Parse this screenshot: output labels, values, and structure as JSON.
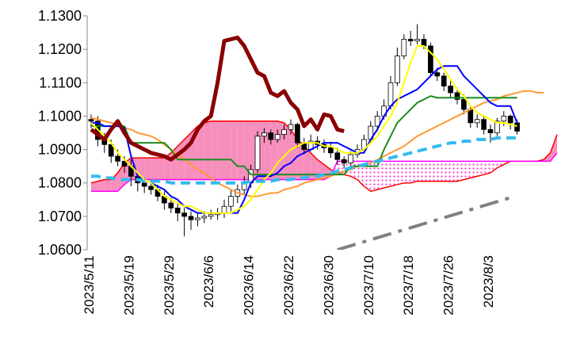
{
  "chart_data": {
    "type": "ichimoku",
    "categories": [
      "2023/5/11",
      null,
      null,
      null,
      null,
      null,
      "2023/5/19",
      null,
      null,
      null,
      null,
      null,
      "2023/5/29",
      null,
      null,
      null,
      null,
      null,
      "2023/6/6",
      null,
      null,
      null,
      null,
      null,
      "2023/6/14",
      null,
      null,
      null,
      null,
      null,
      "2023/6/22",
      null,
      null,
      null,
      null,
      null,
      "2023/6/30",
      null,
      null,
      null,
      null,
      null,
      "2023/7/10",
      null,
      null,
      null,
      null,
      null,
      "2023/7/18",
      null,
      null,
      null,
      null,
      null,
      "2023/7/26",
      null,
      null,
      null,
      null,
      null,
      "2023/8/3",
      null,
      null,
      null,
      null,
      null,
      null,
      null,
      null,
      null,
      null
    ],
    "ylim": [
      1.06,
      1.13
    ],
    "yticks": [
      {
        "value": 1.06,
        "label": "1.0600"
      },
      {
        "value": 1.07,
        "label": "1.0700"
      },
      {
        "value": 1.08,
        "label": "1.0800"
      },
      {
        "value": 1.09,
        "label": "1.0900"
      },
      {
        "value": 1.1,
        "label": "1.1000"
      },
      {
        "value": 1.11,
        "label": "1.1100"
      },
      {
        "value": 1.12,
        "label": "1.1200"
      },
      {
        "value": 1.13,
        "label": "1.1300"
      }
    ],
    "cloud": {
      "span_a": {
        "color": "#ff0000",
        "values": [
          1.08,
          1.0805,
          1.081,
          1.081,
          1.083,
          1.086,
          1.0875,
          1.0875,
          1.0875,
          1.0875,
          1.0875,
          1.0875,
          1.089,
          1.091,
          1.093,
          1.095,
          1.097,
          1.098,
          1.0985,
          1.0985,
          1.0985,
          1.0985,
          1.0985,
          1.0985,
          1.0985,
          1.0985,
          1.0985,
          1.0985,
          1.0985,
          1.098,
          1.096,
          1.093,
          1.091,
          1.089,
          1.087,
          1.0855,
          1.084,
          1.083,
          1.0825,
          1.082,
          1.081,
          1.079,
          1.0775,
          1.078,
          1.0785,
          1.079,
          1.0795,
          1.08,
          1.08,
          1.0805,
          1.0805,
          1.0805,
          1.0805,
          1.0805,
          1.0805,
          1.0805,
          1.081,
          1.0815,
          1.082,
          1.0825,
          1.083,
          1.0845,
          1.0855,
          1.0865,
          1.0865,
          1.0865,
          1.0865,
          1.0865,
          1.087,
          1.089,
          1.0945
        ]
      },
      "span_b": {
        "color": "#ff00ff",
        "values": [
          1.0775,
          1.0775,
          1.0775,
          1.0775,
          1.0775,
          1.0795,
          1.081,
          1.081,
          1.081,
          1.081,
          1.081,
          1.081,
          1.081,
          1.081,
          1.081,
          1.081,
          1.081,
          1.081,
          1.081,
          1.081,
          1.081,
          1.081,
          1.081,
          1.081,
          1.081,
          1.081,
          1.081,
          1.081,
          1.081,
          1.081,
          1.081,
          1.081,
          1.081,
          1.081,
          1.081,
          1.081,
          1.082,
          1.0865,
          1.0865,
          1.0865,
          1.0865,
          1.0865,
          1.0865,
          1.0865,
          1.0865,
          1.0865,
          1.0865,
          1.0865,
          1.0865,
          1.0865,
          1.0865,
          1.0865,
          1.0865,
          1.0865,
          1.0865,
          1.0865,
          1.0865,
          1.0865,
          1.0865,
          1.0865,
          1.0865,
          1.0865,
          1.0865,
          1.0865,
          1.0865,
          1.0865,
          1.0865,
          1.0865,
          1.0865,
          1.0865,
          1.089
        ]
      },
      "bull_color": "#f78fbd",
      "bear_color": "#ff33cc"
    },
    "candles": {
      "up_color": "#ffffff",
      "down_color": "#000000",
      "open": [
        1.099,
        1.0985,
        1.093,
        1.0915,
        1.088,
        1.0865,
        1.085,
        1.082,
        1.08,
        1.079,
        1.078,
        1.076,
        1.074,
        1.0725,
        1.071,
        1.07,
        1.069,
        1.0695,
        1.07,
        1.0705,
        1.071,
        1.073,
        1.076,
        1.078,
        1.08,
        1.084,
        1.094,
        1.095,
        1.093,
        1.0945,
        1.096,
        1.0975,
        1.092,
        1.09,
        1.0925,
        1.0915,
        1.0905,
        1.089,
        1.087,
        1.086,
        1.0885,
        1.09,
        1.093,
        1.097,
        1.1,
        1.103,
        1.11,
        1.118,
        1.123,
        1.1225,
        1.123,
        1.121,
        1.113,
        1.112,
        1.109,
        1.107,
        1.105,
        1.102,
        1.098,
        1.099,
        1.096,
        1.095,
        1.0985,
        1.1,
        1.098
      ],
      "high": [
        1.1005,
        1.1,
        1.095,
        1.093,
        1.09,
        1.088,
        1.087,
        1.083,
        1.0815,
        1.081,
        1.0795,
        1.0775,
        1.0755,
        1.074,
        1.0725,
        1.0715,
        1.071,
        1.0715,
        1.072,
        1.0725,
        1.075,
        1.078,
        1.0795,
        1.082,
        1.0855,
        1.0955,
        1.0965,
        1.096,
        1.096,
        1.0975,
        1.099,
        1.098,
        1.0935,
        1.0945,
        1.094,
        1.093,
        1.092,
        1.0905,
        1.088,
        1.0895,
        1.0915,
        1.0945,
        1.0985,
        1.1015,
        1.105,
        1.112,
        1.1205,
        1.1245,
        1.1255,
        1.1275,
        1.1245,
        1.122,
        1.1145,
        1.113,
        1.1105,
        1.1085,
        1.1065,
        1.103,
        1.1005,
        1.1,
        1.0975,
        1.0995,
        1.1015,
        1.1005,
        1.099
      ],
      "low": [
        1.0965,
        1.091,
        1.089,
        1.086,
        1.085,
        1.083,
        1.079,
        1.0775,
        1.077,
        1.0765,
        1.0745,
        1.072,
        1.071,
        1.0685,
        1.064,
        1.066,
        1.067,
        1.068,
        1.069,
        1.069,
        1.0695,
        1.0715,
        1.074,
        1.0765,
        1.0785,
        1.083,
        1.092,
        1.0915,
        1.092,
        1.093,
        1.0945,
        1.0905,
        1.0885,
        1.0895,
        1.09,
        1.089,
        1.0875,
        1.0855,
        1.0845,
        1.0855,
        1.0875,
        1.0895,
        1.092,
        1.0955,
        1.099,
        1.102,
        1.109,
        1.117,
        1.121,
        1.1215,
        1.12,
        1.112,
        1.1105,
        1.1075,
        1.1055,
        1.1035,
        1.1005,
        1.0965,
        1.0965,
        1.0945,
        1.092,
        1.094,
        1.097,
        1.096,
        1.0945
      ],
      "close": [
        1.0985,
        1.093,
        1.0915,
        1.088,
        1.0865,
        1.085,
        1.082,
        1.08,
        1.079,
        1.078,
        1.076,
        1.074,
        1.0725,
        1.071,
        1.07,
        1.069,
        1.0695,
        1.07,
        1.0705,
        1.071,
        1.073,
        1.076,
        1.078,
        1.08,
        1.084,
        1.094,
        1.095,
        1.093,
        1.0945,
        1.096,
        1.0975,
        1.092,
        1.09,
        1.0925,
        1.0915,
        1.0905,
        1.089,
        1.087,
        1.086,
        1.0885,
        1.09,
        1.093,
        1.097,
        1.1,
        1.103,
        1.11,
        1.118,
        1.123,
        1.1225,
        1.123,
        1.121,
        1.113,
        1.112,
        1.109,
        1.107,
        1.105,
        1.102,
        1.098,
        1.099,
        1.096,
        1.095,
        1.0985,
        1.1,
        1.098,
        1.0955
      ]
    },
    "series": [
      {
        "color": "#ff9933",
        "style": "solid",
        "values": [
          1.0995,
          1.099,
          1.0985,
          1.098,
          1.0975,
          1.0965,
          1.096,
          1.095,
          1.0945,
          1.094,
          1.093,
          1.0915,
          1.09,
          1.0885,
          1.087,
          1.0855,
          1.084,
          1.083,
          1.0815,
          1.08,
          1.079,
          1.078,
          1.077,
          1.0765,
          1.076,
          1.076,
          1.0765,
          1.077,
          1.077,
          1.078,
          1.0785,
          1.079,
          1.08,
          1.0805,
          1.081,
          1.0815,
          1.082,
          1.083,
          1.0835,
          1.084,
          1.085,
          1.0855,
          1.086,
          1.087,
          1.088,
          1.089,
          1.09,
          1.091,
          1.0925,
          1.094,
          1.095,
          1.096,
          1.097,
          1.098,
          1.099,
          1.1,
          1.101,
          1.102,
          1.103,
          1.104,
          1.1045,
          1.105,
          1.106,
          1.1065,
          1.107,
          1.1075,
          1.1075,
          1.107,
          1.107,
          null,
          null
        ]
      },
      {
        "color": "#1e8c1e",
        "style": "solid",
        "values": [
          1.097,
          1.097,
          1.097,
          1.097,
          1.097,
          1.097,
          1.092,
          1.092,
          1.092,
          1.092,
          1.092,
          1.092,
          1.09,
          1.087,
          1.087,
          1.087,
          1.087,
          1.087,
          1.087,
          1.087,
          1.087,
          1.087,
          1.085,
          1.085,
          1.0825,
          1.0825,
          1.0825,
          1.0825,
          1.0825,
          1.0825,
          1.0825,
          1.0825,
          1.0825,
          1.0825,
          1.0825,
          1.0825,
          1.0825,
          1.0825,
          1.0825,
          1.085,
          1.085,
          1.085,
          1.085,
          1.085,
          1.09,
          1.094,
          1.098,
          1.1,
          1.102,
          1.104,
          1.105,
          1.106,
          1.1055,
          1.1055,
          1.1055,
          1.1055,
          1.1055,
          1.1055,
          1.1055,
          1.1055,
          1.1055,
          1.1055,
          1.1055,
          1.1055,
          1.1055,
          null,
          null,
          null,
          null,
          null,
          null
        ]
      },
      {
        "color": "#0000ff",
        "style": "solid",
        "values": [
          1.098,
          1.098,
          1.097,
          1.097,
          1.097,
          1.0965,
          1.088,
          1.082,
          1.081,
          1.08,
          1.079,
          1.078,
          1.076,
          1.075,
          1.073,
          1.072,
          1.071,
          1.071,
          1.071,
          1.071,
          1.071,
          1.071,
          1.071,
          1.075,
          1.08,
          1.082,
          1.082,
          1.082,
          1.083,
          1.085,
          1.086,
          1.088,
          1.089,
          1.09,
          1.091,
          1.092,
          1.092,
          1.092,
          1.091,
          1.09,
          1.089,
          1.089,
          1.093,
          1.096,
          1.1,
          1.103,
          1.105,
          1.106,
          1.107,
          1.108,
          1.11,
          1.112,
          1.114,
          1.115,
          1.115,
          1.115,
          1.112,
          1.11,
          1.108,
          1.106,
          1.104,
          1.103,
          1.103,
          1.103,
          1.098,
          null,
          null,
          null,
          null,
          null,
          null
        ]
      },
      {
        "color": "#ffff00",
        "style": "solid",
        "values": [
          1.098,
          1.096,
          1.094,
          1.092,
          1.089,
          1.087,
          1.085,
          1.083,
          1.081,
          1.08,
          1.078,
          1.076,
          1.075,
          1.074,
          1.073,
          1.073,
          1.072,
          1.071,
          1.071,
          1.071,
          1.071,
          1.071,
          1.072,
          1.073,
          1.075,
          1.078,
          1.081,
          1.083,
          1.086,
          1.088,
          1.09,
          1.091,
          1.092,
          1.092,
          1.092,
          1.091,
          1.091,
          1.09,
          1.089,
          1.089,
          1.089,
          1.09,
          1.092,
          1.094,
          1.097,
          1.1,
          1.104,
          1.11,
          1.116,
          1.121,
          1.121,
          1.119,
          1.117,
          1.114,
          1.111,
          1.108,
          1.106,
          1.103,
          1.101,
          1.1,
          1.099,
          1.098,
          1.098,
          1.0975,
          1.097,
          null,
          null,
          null,
          null,
          null,
          null
        ]
      },
      {
        "color": "#8b0000",
        "style": "thick",
        "values": [
          1.096,
          1.0945,
          1.093,
          1.096,
          1.0985,
          1.095,
          1.092,
          1.091,
          1.09,
          1.089,
          1.0885,
          1.088,
          1.087,
          1.0885,
          1.09,
          1.092,
          1.096,
          1.0985,
          1.1,
          1.11,
          1.1225,
          1.123,
          1.1235,
          1.121,
          1.117,
          1.113,
          1.112,
          1.107,
          1.106,
          1.1075,
          1.104,
          1.102,
          1.097,
          1.099,
          1.096,
          1.1005,
          1.1,
          1.096,
          1.0955,
          null,
          null,
          null,
          null,
          null,
          null,
          null,
          null,
          null,
          null,
          null,
          null,
          null,
          null,
          null,
          null,
          null,
          null,
          null,
          null,
          null,
          null,
          null,
          null,
          null,
          null,
          null,
          null,
          null,
          null,
          null,
          null
        ]
      },
      {
        "color": "#33bbee",
        "style": "dashed",
        "values": [
          1.082,
          1.082,
          1.0815,
          1.0815,
          1.081,
          1.081,
          1.081,
          1.081,
          1.0805,
          1.0805,
          1.0805,
          1.0805,
          1.08,
          1.08,
          1.08,
          1.08,
          1.08,
          1.08,
          1.08,
          1.08,
          1.08,
          1.08,
          1.08,
          1.08,
          1.0805,
          1.0805,
          1.0805,
          1.0805,
          1.081,
          1.081,
          1.081,
          1.0815,
          1.0815,
          1.082,
          1.082,
          1.0825,
          1.083,
          1.0835,
          1.084,
          1.0845,
          1.085,
          1.0855,
          1.086,
          1.0865,
          1.087,
          1.0875,
          1.088,
          1.0885,
          1.089,
          1.0895,
          1.09,
          1.0905,
          1.091,
          1.0915,
          1.092,
          1.092,
          1.0925,
          1.0925,
          1.093,
          1.093,
          1.093,
          1.0935,
          1.0935,
          1.0935,
          1.0935,
          null,
          null,
          null,
          null,
          null,
          null
        ]
      },
      {
        "color": "#808080",
        "style": "dash-dot",
        "values": [
          null,
          null,
          null,
          null,
          null,
          null,
          null,
          null,
          null,
          null,
          null,
          null,
          null,
          null,
          null,
          null,
          null,
          null,
          null,
          null,
          null,
          null,
          null,
          null,
          null,
          null,
          null,
          null,
          null,
          null,
          null,
          null,
          null,
          null,
          null,
          null,
          null,
          1.06,
          1.0606,
          1.0612,
          1.0618,
          1.0624,
          1.063,
          1.0636,
          1.0642,
          1.0648,
          1.0654,
          1.066,
          1.0666,
          1.0672,
          1.0678,
          1.0684,
          1.069,
          1.0696,
          1.0702,
          1.0708,
          1.0714,
          1.072,
          1.0726,
          1.0732,
          1.0738,
          1.0744,
          1.075,
          1.0756,
          null,
          null,
          null,
          null,
          null,
          null,
          null
        ]
      }
    ]
  }
}
